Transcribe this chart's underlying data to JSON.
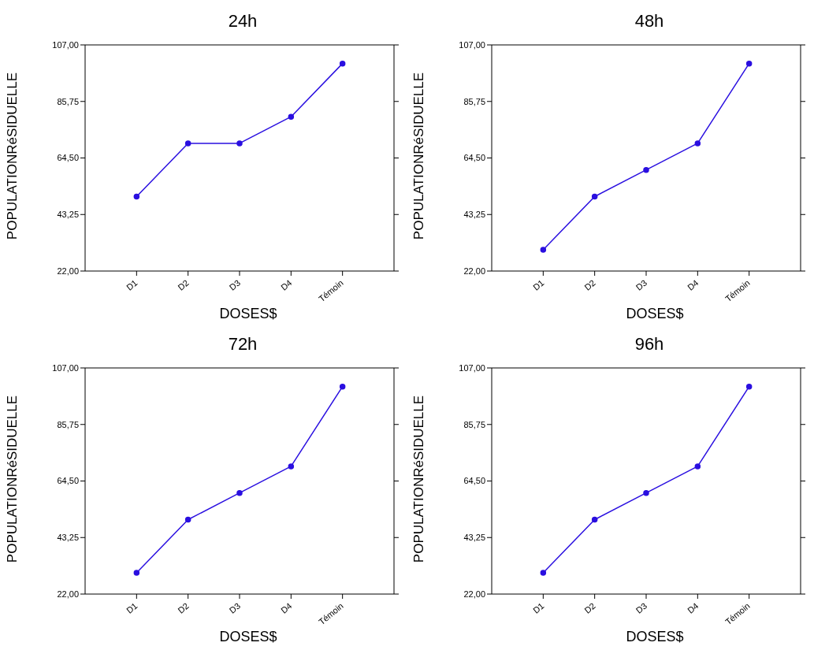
{
  "chart_data": [
    {
      "type": "line",
      "title": "24h",
      "xlabel": "DOSES$",
      "ylabel": "POPULATIONRéSIDUELLE",
      "categories": [
        "D1",
        "D2",
        "D3",
        "D4",
        "Témoin"
      ],
      "values": [
        50,
        70,
        70,
        80,
        100
      ],
      "color": "#2a0fe0",
      "ylim": [
        22,
        107
      ],
      "yticks": [
        {
          "value": 22,
          "label": "22,00"
        },
        {
          "value": 43.25,
          "label": "43,25"
        },
        {
          "value": 64.5,
          "label": "64,50"
        },
        {
          "value": 85.75,
          "label": "85,75"
        },
        {
          "value": 107,
          "label": "107,00"
        }
      ],
      "marker": "circle",
      "line_style": "solid",
      "grid": false,
      "legend": false
    },
    {
      "type": "line",
      "title": "48h",
      "xlabel": "DOSES$",
      "ylabel": "POPULATIONRéSIDUELLE",
      "categories": [
        "D1",
        "D2",
        "D3",
        "D4",
        "Témoin"
      ],
      "values": [
        30,
        50,
        60,
        70,
        100
      ],
      "color": "#2a0fe0",
      "ylim": [
        22,
        107
      ],
      "yticks": [
        {
          "value": 22,
          "label": "22,00"
        },
        {
          "value": 43.25,
          "label": "43,25"
        },
        {
          "value": 64.5,
          "label": "64,50"
        },
        {
          "value": 85.75,
          "label": "85,75"
        },
        {
          "value": 107,
          "label": "107,00"
        }
      ],
      "marker": "circle",
      "line_style": "solid",
      "grid": false,
      "legend": false
    },
    {
      "type": "line",
      "title": "72h",
      "xlabel": "DOSES$",
      "ylabel": "POPULATIONRéSIDUELLE",
      "categories": [
        "D1",
        "D2",
        "D3",
        "D4",
        "Témoin"
      ],
      "values": [
        30,
        50,
        60,
        70,
        100
      ],
      "color": "#2a0fe0",
      "ylim": [
        22,
        107
      ],
      "yticks": [
        {
          "value": 22,
          "label": "22,00"
        },
        {
          "value": 43.25,
          "label": "43,25"
        },
        {
          "value": 64.5,
          "label": "64,50"
        },
        {
          "value": 85.75,
          "label": "85,75"
        },
        {
          "value": 107,
          "label": "107,00"
        }
      ],
      "marker": "circle",
      "line_style": "solid",
      "grid": false,
      "legend": false
    },
    {
      "type": "line",
      "title": "96h",
      "xlabel": "DOSES$",
      "ylabel": "POPULATIONRéSIDUELLE",
      "categories": [
        "D1",
        "D2",
        "D3",
        "D4",
        "Témoin"
      ],
      "values": [
        30,
        50,
        60,
        70,
        100
      ],
      "color": "#2a0fe0",
      "ylim": [
        22,
        107
      ],
      "yticks": [
        {
          "value": 22,
          "label": "22,00"
        },
        {
          "value": 43.25,
          "label": "43,25"
        },
        {
          "value": 64.5,
          "label": "64,50"
        },
        {
          "value": 85.75,
          "label": "85,75"
        },
        {
          "value": 107,
          "label": "107,00"
        }
      ],
      "marker": "circle",
      "line_style": "solid",
      "grid": false,
      "legend": false
    }
  ]
}
